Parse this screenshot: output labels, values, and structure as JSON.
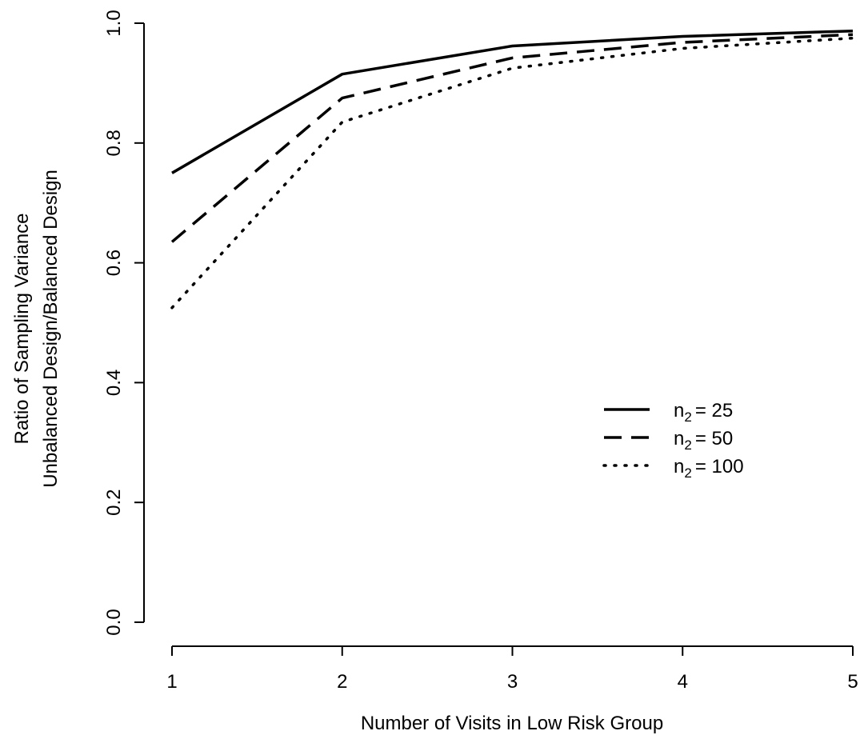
{
  "chart_data": {
    "type": "line",
    "xlabel": "Number of Visits in Low Risk Group",
    "ylabel_lines": [
      "Ratio of Sampling Variance",
      "Unbalanced Design/Balanced Design"
    ],
    "x": [
      1,
      2,
      3,
      4,
      5
    ],
    "xlim": [
      1,
      5
    ],
    "ylim": [
      0,
      1
    ],
    "x_ticks": [
      "1",
      "2",
      "3",
      "4",
      "5"
    ],
    "y_ticks": [
      "0.0",
      "0.2",
      "0.4",
      "0.6",
      "0.8",
      "1.0"
    ],
    "grid": false,
    "legend_position": "right",
    "series": [
      {
        "label_prefix": "n",
        "label_sub": "2",
        "label_value": "= 25",
        "line_style": "solid",
        "color": "#000000",
        "values": [
          0.75,
          0.915,
          0.962,
          0.978,
          0.987
        ]
      },
      {
        "label_prefix": "n",
        "label_sub": "2",
        "label_value": "= 50",
        "line_style": "dashed",
        "color": "#000000",
        "values": [
          0.635,
          0.875,
          0.942,
          0.968,
          0.981
        ]
      },
      {
        "label_prefix": "n",
        "label_sub": "2",
        "label_value": "= 100",
        "line_style": "dotted",
        "color": "#000000",
        "values": [
          0.525,
          0.835,
          0.925,
          0.958,
          0.975
        ]
      }
    ]
  }
}
